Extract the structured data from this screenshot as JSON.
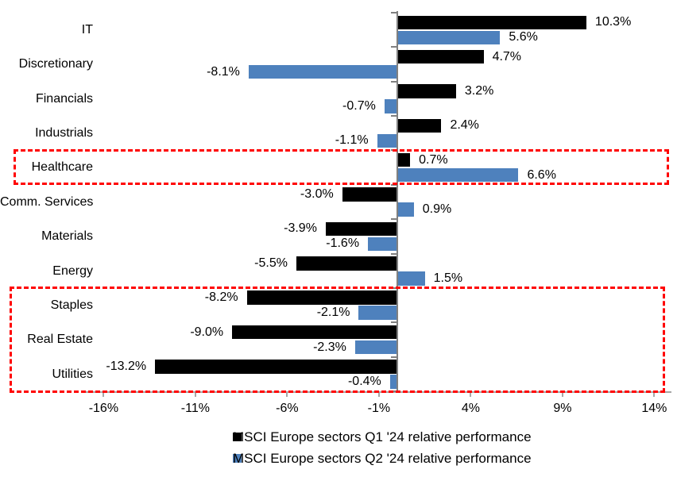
{
  "chart_data": {
    "type": "bar",
    "orientation": "horizontal",
    "title": "",
    "categories": [
      "IT",
      "Discretionary",
      "Financials",
      "Industrials",
      "Healthcare",
      "Comm. Services",
      "Materials",
      "Energy",
      "Staples",
      "Real Estate",
      "Utilities"
    ],
    "series": [
      {
        "name": "MSCI Europe sectors Q1 '24 relative performance",
        "color": "#000000",
        "values": [
          10.3,
          4.7,
          3.2,
          2.4,
          0.7,
          -3.0,
          -3.9,
          -5.5,
          -8.2,
          -9.0,
          -13.2
        ],
        "labels": [
          "10.3%",
          "4.7%",
          "3.2%",
          "2.4%",
          "0.7%",
          "-3.0%",
          "-3.9%",
          "-5.5%",
          "-8.2%",
          "-9.0%",
          "-13.2%"
        ]
      },
      {
        "name": "MSCI Europe sectors Q2 '24 relative performance",
        "color": "#4E81BD",
        "values": [
          5.6,
          -8.1,
          -0.7,
          -1.1,
          6.6,
          0.9,
          -1.6,
          1.5,
          -2.1,
          -2.3,
          -0.4
        ],
        "labels": [
          "5.6%",
          "-8.1%",
          "-0.7%",
          "-1.1%",
          "6.6%",
          "0.9%",
          "-1.6%",
          "1.5%",
          "-2.1%",
          "-2.3%",
          "-0.4%"
        ]
      }
    ],
    "x_ticks": [
      {
        "value": -16,
        "label": "-16%"
      },
      {
        "value": -11,
        "label": "-11%"
      },
      {
        "value": -6,
        "label": "-6%"
      },
      {
        "value": -1,
        "label": "-1%"
      },
      {
        "value": 4,
        "label": "4%"
      },
      {
        "value": 9,
        "label": "9%"
      },
      {
        "value": 14,
        "label": "14%"
      }
    ],
    "xlim": [
      -17,
      15
    ],
    "grid": false,
    "legend_position": "bottom",
    "highlight_color": "#FF0000",
    "highlight_boxes": [
      {
        "start_category": "Healthcare",
        "end_category": "Healthcare",
        "color": "#FF0000",
        "style": "dashed"
      },
      {
        "start_category": "Staples",
        "end_category": "Utilities",
        "color": "#FF0000",
        "style": "dashed"
      }
    ]
  }
}
